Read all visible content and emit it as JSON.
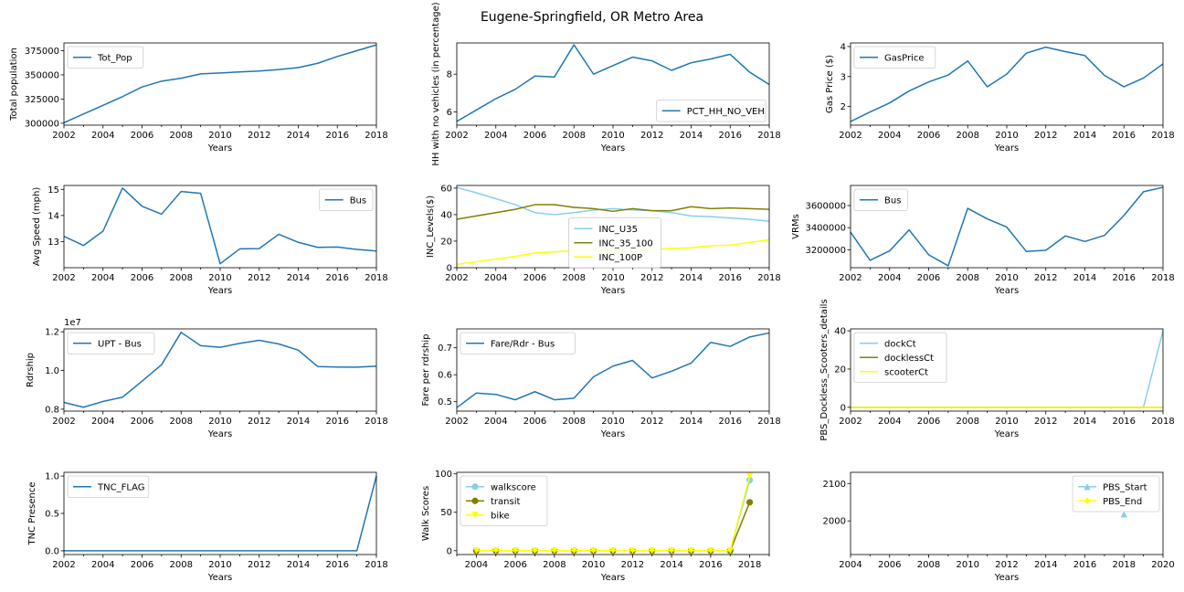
{
  "figure": {
    "title": "Eugene-Springfield, OR Metro Area"
  },
  "chart_data": [
    {
      "id": "tot_pop",
      "type": "line",
      "xlabel": "Years",
      "ylabel": "Total population",
      "xlim": [
        2002,
        2018
      ],
      "ylim": [
        298000,
        383000
      ],
      "xticks": [
        2002,
        2004,
        2006,
        2008,
        2010,
        2012,
        2014,
        2016,
        2018
      ],
      "yticks": [
        300000,
        325000,
        350000,
        375000
      ],
      "ytick_labels": [
        "300000",
        "325000",
        "350000",
        "375000"
      ],
      "legend": "upper left",
      "x": [
        2002,
        2003,
        2004,
        2005,
        2006,
        2007,
        2008,
        2009,
        2010,
        2011,
        2012,
        2013,
        2014,
        2015,
        2016,
        2017,
        2018
      ],
      "series": [
        {
          "name": "Tot_Pop",
          "color": "#1f77b4",
          "values": [
            300500,
            309500,
            318500,
            327500,
            337500,
            343500,
            346500,
            351000,
            352000,
            353000,
            354000,
            355500,
            357500,
            362000,
            369000,
            375000,
            381000
          ]
        }
      ]
    },
    {
      "id": "pct_hh_no_veh",
      "type": "line",
      "xlabel": "Years",
      "ylabel": "HH with no vehicles (in percentage)",
      "xlim": [
        2002,
        2018
      ],
      "ylim": [
        5.3,
        9.65
      ],
      "xticks": [
        2002,
        2004,
        2006,
        2008,
        2010,
        2012,
        2014,
        2016,
        2018
      ],
      "yticks": [
        6,
        8
      ],
      "ytick_labels": [
        "6",
        "8"
      ],
      "legend": "lower right",
      "x": [
        2002,
        2003,
        2004,
        2005,
        2006,
        2007,
        2008,
        2009,
        2010,
        2011,
        2012,
        2013,
        2014,
        2015,
        2016,
        2017,
        2018
      ],
      "series": [
        {
          "name": "PCT_HH_NO_VEH",
          "color": "#1f77b4",
          "values": [
            5.5,
            6.1,
            6.7,
            7.2,
            7.9,
            7.85,
            9.55,
            8.0,
            8.45,
            8.9,
            8.7,
            8.2,
            8.6,
            8.8,
            9.05,
            8.1,
            7.45
          ]
        }
      ]
    },
    {
      "id": "gas_price",
      "type": "line",
      "xlabel": "Years",
      "ylabel": "Gas Price ($)",
      "xlim": [
        2002,
        2018
      ],
      "ylim": [
        1.38,
        4.12
      ],
      "xticks": [
        2002,
        2004,
        2006,
        2008,
        2010,
        2012,
        2014,
        2016,
        2018
      ],
      "yticks": [
        2,
        3,
        4
      ],
      "ytick_labels": [
        "2",
        "3",
        "4"
      ],
      "legend": "upper left",
      "x": [
        2002,
        2003,
        2004,
        2005,
        2006,
        2007,
        2008,
        2009,
        2010,
        2011,
        2012,
        2013,
        2014,
        2015,
        2016,
        2017,
        2018
      ],
      "series": [
        {
          "name": "GasPrice",
          "color": "#1f77b4",
          "values": [
            1.5,
            1.82,
            2.12,
            2.52,
            2.82,
            3.05,
            3.52,
            2.66,
            3.08,
            3.78,
            3.98,
            3.83,
            3.7,
            3.04,
            2.66,
            2.95,
            3.42
          ]
        }
      ]
    },
    {
      "id": "avg_speed",
      "type": "line",
      "xlabel": "Years",
      "ylabel": "Avg Speed (mph)",
      "xlim": [
        2002,
        2018
      ],
      "ylim": [
        12.0,
        15.15
      ],
      "xticks": [
        2002,
        2004,
        2006,
        2008,
        2010,
        2012,
        2014,
        2016,
        2018
      ],
      "yticks": [
        13,
        14,
        15
      ],
      "ytick_labels": [
        "13",
        "14",
        "15"
      ],
      "legend": "upper right",
      "x": [
        2002,
        2003,
        2004,
        2005,
        2006,
        2007,
        2008,
        2009,
        2010,
        2011,
        2012,
        2013,
        2014,
        2015,
        2016,
        2017,
        2018
      ],
      "series": [
        {
          "name": "Bus",
          "color": "#1f77b4",
          "values": [
            13.2,
            12.85,
            13.4,
            15.05,
            14.35,
            14.05,
            14.92,
            14.85,
            12.15,
            12.72,
            12.73,
            13.28,
            12.97,
            12.78,
            12.79,
            12.7,
            12.64
          ]
        }
      ]
    },
    {
      "id": "inc_levels",
      "type": "line",
      "xlabel": "Years",
      "ylabel": "INC_Levels($)",
      "xlim": [
        2002,
        2018
      ],
      "ylim": [
        0,
        62
      ],
      "xticks": [
        2002,
        2004,
        2006,
        2008,
        2010,
        2012,
        2014,
        2016,
        2018
      ],
      "yticks": [
        0,
        20,
        40,
        60
      ],
      "ytick_labels": [
        "0",
        "20",
        "40",
        "60"
      ],
      "legend": "lower center",
      "x": [
        2002,
        2003,
        2004,
        2005,
        2006,
        2007,
        2008,
        2009,
        2010,
        2011,
        2012,
        2013,
        2014,
        2015,
        2016,
        2017,
        2018
      ],
      "series": [
        {
          "name": "INC_U35",
          "color": "#87ceeb",
          "values": [
            60.5,
            56.5,
            52.0,
            47.5,
            41.5,
            40.0,
            41.5,
            43.5,
            44.5,
            43.5,
            43.0,
            41.5,
            39.0,
            38.5,
            37.5,
            36.5,
            35.0
          ]
        },
        {
          "name": "INC_35_100",
          "color": "#808000",
          "values": [
            36.5,
            39.0,
            41.5,
            44.0,
            47.5,
            47.5,
            45.5,
            44.5,
            42.5,
            44.5,
            43.0,
            43.0,
            46.0,
            44.5,
            45.0,
            44.5,
            44.0
          ]
        },
        {
          "name": "INC_100P",
          "color": "#ffff00",
          "values": [
            2.5,
            4.5,
            6.5,
            8.5,
            11.0,
            12.0,
            13.0,
            12.5,
            13.0,
            12.0,
            13.5,
            14.5,
            15.0,
            16.5,
            17.0,
            19.0,
            21.0
          ]
        }
      ]
    },
    {
      "id": "vrms",
      "type": "line",
      "xlabel": "Years",
      "ylabel": "VRMs",
      "xlim": [
        2002,
        2018
      ],
      "ylim": [
        3038000,
        3782000
      ],
      "xticks": [
        2002,
        2004,
        2006,
        2008,
        2010,
        2012,
        2014,
        2016,
        2018
      ],
      "yticks": [
        3200000,
        3400000,
        3600000
      ],
      "ytick_labels": [
        "3200000",
        "3400000",
        "3600000"
      ],
      "legend": "upper left",
      "x": [
        2002,
        2003,
        2004,
        2005,
        2006,
        2007,
        2008,
        2009,
        2010,
        2011,
        2012,
        2013,
        2014,
        2015,
        2016,
        2017,
        2018
      ],
      "series": [
        {
          "name": "Bus",
          "color": "#1f77b4",
          "values": [
            3360000,
            3105000,
            3190000,
            3380000,
            3155000,
            3055000,
            3575000,
            3480000,
            3405000,
            3185000,
            3195000,
            3325000,
            3275000,
            3330000,
            3510000,
            3725000,
            3765000
          ]
        }
      ]
    },
    {
      "id": "upt_bus",
      "type": "line",
      "xlabel": "Years",
      "ylabel": "Rdrship",
      "offset_label": "1e7",
      "xlim": [
        2002,
        2018
      ],
      "ylim": [
        7.9,
        12.15
      ],
      "xticks": [
        2002,
        2004,
        2006,
        2008,
        2010,
        2012,
        2014,
        2016,
        2018
      ],
      "yticks": [
        8.0,
        10.0,
        12.0
      ],
      "ytick_labels": [
        "0.8",
        "1.0",
        "1.2"
      ],
      "legend": "upper left",
      "x": [
        2002,
        2003,
        2004,
        2005,
        2006,
        2007,
        2008,
        2009,
        2010,
        2011,
        2012,
        2013,
        2014,
        2015,
        2016,
        2017,
        2018
      ],
      "series": [
        {
          "name": "UPT - Bus",
          "color": "#1f77b4",
          "values": [
            8.35,
            8.1,
            8.4,
            8.62,
            9.45,
            10.3,
            11.97,
            11.28,
            11.2,
            11.4,
            11.56,
            11.37,
            11.05,
            10.2,
            10.18,
            10.17,
            10.22
          ]
        }
      ]
    },
    {
      "id": "fare_rdr",
      "type": "line",
      "xlabel": "Years",
      "ylabel": "Fare per rdrship",
      "xlim": [
        2002,
        2018
      ],
      "ylim": [
        0.465,
        0.77
      ],
      "xticks": [
        2002,
        2004,
        2006,
        2008,
        2010,
        2012,
        2014,
        2016,
        2018
      ],
      "yticks": [
        0.5,
        0.6,
        0.7
      ],
      "ytick_labels": [
        "0.5",
        "0.6",
        "0.7"
      ],
      "legend": "upper left",
      "x": [
        2002,
        2003,
        2004,
        2005,
        2006,
        2007,
        2008,
        2009,
        2010,
        2011,
        2012,
        2013,
        2014,
        2015,
        2016,
        2017,
        2018
      ],
      "series": [
        {
          "name": "Fare/Rdr - Bus",
          "color": "#1f77b4",
          "values": [
            0.478,
            0.532,
            0.527,
            0.507,
            0.537,
            0.507,
            0.513,
            0.592,
            0.632,
            0.653,
            0.588,
            0.613,
            0.643,
            0.72,
            0.705,
            0.74,
            0.755
          ]
        }
      ]
    },
    {
      "id": "pbs_dockless",
      "type": "line",
      "xlabel": "Years",
      "ylabel": "PBS_Dockless_Scooters_details",
      "xlim": [
        2002,
        2018
      ],
      "ylim": [
        -2,
        41
      ],
      "xticks": [
        2002,
        2004,
        2006,
        2008,
        2010,
        2012,
        2014,
        2016,
        2018
      ],
      "yticks": [
        0,
        20,
        40
      ],
      "ytick_labels": [
        "0",
        "20",
        "40"
      ],
      "legend": "upper left",
      "x": [
        2002,
        2003,
        2004,
        2005,
        2006,
        2007,
        2008,
        2009,
        2010,
        2011,
        2012,
        2013,
        2014,
        2015,
        2016,
        2017,
        2018
      ],
      "series": [
        {
          "name": "dockCt",
          "color": "#87ceeb",
          "values": [
            0,
            0,
            0,
            0,
            0,
            0,
            0,
            0,
            0,
            0,
            0,
            0,
            0,
            0,
            0,
            0,
            40
          ]
        },
        {
          "name": "docklessCt",
          "color": "#808000",
          "values": [
            0,
            0,
            0,
            0,
            0,
            0,
            0,
            0,
            0,
            0,
            0,
            0,
            0,
            0,
            0,
            0,
            0
          ]
        },
        {
          "name": "scooterCt",
          "color": "#ffff00",
          "values": [
            0,
            0,
            0,
            0,
            0,
            0,
            0,
            0,
            0,
            0,
            0,
            0,
            0,
            0,
            0,
            0,
            0
          ]
        }
      ]
    },
    {
      "id": "tnc_flag",
      "type": "line",
      "xlabel": "Years",
      "ylabel": "TNC Presence",
      "xlim": [
        2002,
        2018
      ],
      "ylim": [
        -0.05,
        1.05
      ],
      "xticks": [
        2002,
        2004,
        2006,
        2008,
        2010,
        2012,
        2014,
        2016,
        2018
      ],
      "yticks": [
        0.0,
        0.5,
        1.0
      ],
      "ytick_labels": [
        "0.0",
        "0.5",
        "1.0"
      ],
      "legend": "upper left",
      "x": [
        2002,
        2003,
        2004,
        2005,
        2006,
        2007,
        2008,
        2009,
        2010,
        2011,
        2012,
        2013,
        2014,
        2015,
        2016,
        2017,
        2018
      ],
      "series": [
        {
          "name": "TNC_FLAG",
          "color": "#1f77b4",
          "values": [
            0,
            0,
            0,
            0,
            0,
            0,
            0,
            0,
            0,
            0,
            0,
            0,
            0,
            0,
            0,
            0,
            1
          ]
        }
      ]
    },
    {
      "id": "walk_scores",
      "type": "line",
      "xlabel": "Years",
      "ylabel": "Walk Scores",
      "xlim": [
        2003,
        2019
      ],
      "ylim": [
        -5,
        102
      ],
      "xticks": [
        2004,
        2006,
        2008,
        2010,
        2012,
        2014,
        2016,
        2018
      ],
      "yticks": [
        0,
        50,
        100
      ],
      "ytick_labels": [
        "0",
        "50",
        "100"
      ],
      "legend": "upper left",
      "x": [
        2004,
        2005,
        2006,
        2007,
        2008,
        2009,
        2010,
        2011,
        2012,
        2013,
        2014,
        2015,
        2016,
        2017,
        2018
      ],
      "series": [
        {
          "name": "walkscore",
          "color": "#87ceeb",
          "marker": "circle",
          "values": [
            0,
            0,
            0,
            0,
            0,
            0,
            0,
            0,
            0,
            0,
            0,
            0,
            0,
            0,
            92
          ]
        },
        {
          "name": "transit",
          "color": "#808000",
          "marker": "circle",
          "values": [
            0,
            0,
            0,
            0,
            0,
            0,
            0,
            0,
            0,
            0,
            0,
            0,
            0,
            0,
            63
          ]
        },
        {
          "name": "bike",
          "color": "#ffff00",
          "marker": "triangle-down",
          "values": [
            0,
            0,
            0,
            0,
            0,
            0,
            0,
            0,
            0,
            0,
            0,
            0,
            0,
            0,
            97
          ]
        }
      ]
    },
    {
      "id": "pbs_start_end",
      "type": "line",
      "xlabel": "Years",
      "ylabel": "",
      "xlim": [
        2004,
        2020
      ],
      "ylim": [
        1910,
        2130
      ],
      "xticks": [
        2004,
        2006,
        2008,
        2010,
        2012,
        2014,
        2016,
        2018,
        2020
      ],
      "yticks": [
        2000,
        2100
      ],
      "ytick_labels": [
        "2000",
        "2100"
      ],
      "legend": "upper right",
      "x": [
        2018
      ],
      "series": [
        {
          "name": "PBS_Start",
          "color": "#87ceeb",
          "marker": "triangle-up",
          "values": [
            2018
          ]
        },
        {
          "name": "PBS_End",
          "color": "#ffff00",
          "marker": "diamond",
          "values": [
            null
          ]
        }
      ]
    }
  ]
}
